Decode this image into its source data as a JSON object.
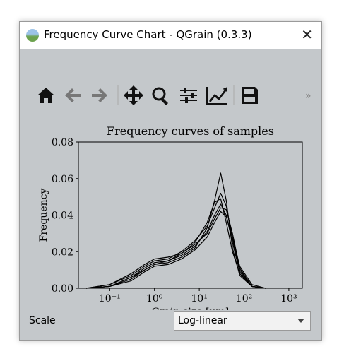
{
  "window": {
    "title": "Frequency Curve Chart - QGrain (0.3.3)"
  },
  "chart_data": {
    "type": "line",
    "title": "Frequency curves of samples",
    "xlabel": "Grain-size [μm]",
    "ylabel": "Frequency",
    "log_x": true,
    "x": [
      0.03,
      0.1,
      0.3,
      0.6,
      1,
      2,
      4,
      8,
      15,
      22,
      30,
      40,
      55,
      80,
      150,
      300
    ],
    "series": [
      {
        "color": "#000000",
        "values": [
          0,
          0.001,
          0.006,
          0.011,
          0.014,
          0.015,
          0.018,
          0.023,
          0.031,
          0.04,
          0.046,
          0.04,
          0.025,
          0.009,
          0.001,
          0
        ]
      },
      {
        "color": "#000000",
        "values": [
          0,
          0.001,
          0.005,
          0.01,
          0.013,
          0.014,
          0.017,
          0.022,
          0.033,
          0.048,
          0.063,
          0.048,
          0.022,
          0.007,
          0.001,
          0
        ]
      },
      {
        "color": "#000000",
        "values": [
          0,
          0.002,
          0.007,
          0.012,
          0.015,
          0.016,
          0.02,
          0.026,
          0.034,
          0.044,
          0.052,
          0.045,
          0.027,
          0.01,
          0.001,
          0
        ]
      },
      {
        "color": "#000000",
        "values": [
          0,
          0.001,
          0.004,
          0.009,
          0.012,
          0.013,
          0.016,
          0.021,
          0.028,
          0.036,
          0.042,
          0.039,
          0.028,
          0.012,
          0.002,
          0
        ]
      },
      {
        "color": "#000000",
        "values": [
          0,
          0.001,
          0.006,
          0.01,
          0.013,
          0.015,
          0.019,
          0.025,
          0.036,
          0.047,
          0.049,
          0.036,
          0.02,
          0.008,
          0.001,
          0
        ]
      },
      {
        "color": "#000000",
        "values": [
          0,
          0.002,
          0.008,
          0.013,
          0.016,
          0.017,
          0.019,
          0.024,
          0.03,
          0.038,
          0.044,
          0.043,
          0.03,
          0.011,
          0.001,
          0
        ]
      }
    ],
    "xlim": [
      0.02,
      2000
    ],
    "ylim": [
      0,
      0.08
    ],
    "xticks": [
      {
        "value": 0.1,
        "label": "10⁻¹"
      },
      {
        "value": 1,
        "label": "10⁰"
      },
      {
        "value": 10,
        "label": "10¹"
      },
      {
        "value": 100,
        "label": "10²"
      },
      {
        "value": 1000,
        "label": "10³"
      }
    ],
    "yticks": [
      {
        "value": 0,
        "label": "0.00"
      },
      {
        "value": 0.02,
        "label": "0.02"
      },
      {
        "value": 0.04,
        "label": "0.04"
      },
      {
        "value": 0.06,
        "label": "0.06"
      },
      {
        "value": 0.08,
        "label": "0.08"
      }
    ]
  },
  "controls": {
    "scale_label": "Scale",
    "scale_value": "Log-linear"
  }
}
